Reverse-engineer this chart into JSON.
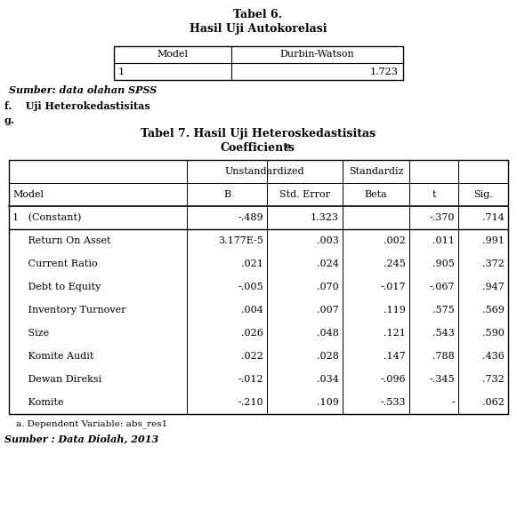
{
  "title1": "Tabel 6.",
  "title2": "Hasil Uji Autokorelasi",
  "table1_headers": [
    "Model",
    "Durbin-Watson"
  ],
  "table1_data": [
    [
      "1",
      "1.723"
    ]
  ],
  "source1": "Sumber: data olahan SPSS",
  "section_f": "f.    Uji Heterokedastisitas",
  "section_g": "g.",
  "title3": "Tabel 7. Hasil Uji Heteroskedastisitas",
  "title4_main": "Coefficients",
  "title4_super": "a",
  "col_headers_top_text": [
    "Unstandardized",
    "Standardiz"
  ],
  "col_headers_bot": [
    "Model",
    "B",
    "Std. Error",
    "Beta",
    "t",
    "Sig."
  ],
  "rows": [
    [
      "1   (Constant)",
      "-.489",
      "1.323",
      "",
      "-.370",
      ".714"
    ],
    [
      "     Return On Asset",
      "3.177E-5",
      ".003",
      ".002",
      ".011",
      ".991"
    ],
    [
      "     Current Ratio",
      ".021",
      ".024",
      ".245",
      ".905",
      ".372"
    ],
    [
      "     Debt to Equity",
      "-.005",
      ".070",
      "-.017",
      "-.067",
      ".947"
    ],
    [
      "     Inventory Turnover",
      ".004",
      ".007",
      ".119",
      ".575",
      ".569"
    ],
    [
      "     Size",
      ".026",
      ".048",
      ".121",
      ".543",
      ".590"
    ],
    [
      "     Komite Audit",
      ".022",
      ".028",
      ".147",
      ".788",
      ".436"
    ],
    [
      "     Dewan Direksi",
      "-.012",
      ".034",
      "-.096",
      "-.345",
      ".732"
    ],
    [
      "     Komite",
      "-.210",
      ".109",
      "-.533",
      "-",
      ".062"
    ]
  ],
  "footnote": "a. Dependent Variable: abs_res1",
  "source2": "Sumber : Data Diolah, 2013",
  "bg_color": "#ffffff",
  "text_color": "#000000",
  "fs": 8.0,
  "fs_title": 9.0
}
